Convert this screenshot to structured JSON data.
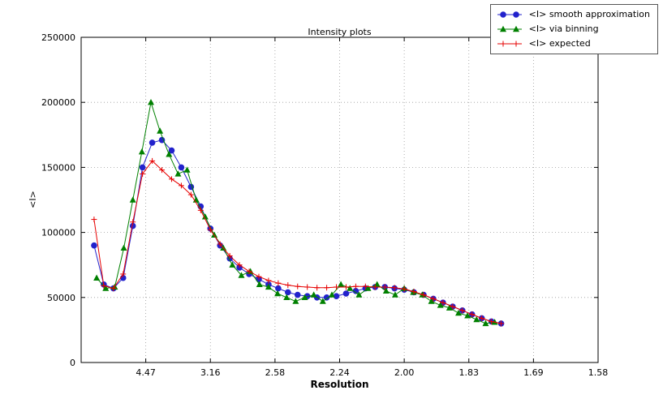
{
  "page": {
    "background": "#ffffff"
  },
  "chart_data": {
    "type": "line",
    "title": "Intensity plots",
    "xlabel": "Resolution",
    "ylabel": "<I>",
    "x_axis_units": "ticks labeled as resolution (A), axis linear in 1/d^2",
    "x_range": [
      0,
      0.4
    ],
    "ylim": [
      0,
      250000
    ],
    "grid": true,
    "legend_position": "upper right",
    "x_ticks": [
      {
        "label": "4.47",
        "pos": 0.05
      },
      {
        "label": "3.16",
        "pos": 0.1
      },
      {
        "label": "2.58",
        "pos": 0.15
      },
      {
        "label": "2.24",
        "pos": 0.2
      },
      {
        "label": "2.00",
        "pos": 0.25
      },
      {
        "label": "1.83",
        "pos": 0.3
      },
      {
        "label": "1.69",
        "pos": 0.35
      },
      {
        "label": "1.58",
        "pos": 0.4
      }
    ],
    "y_ticks": [
      0,
      50000,
      100000,
      150000,
      200000,
      250000
    ],
    "series": [
      {
        "name": "<I> smooth approximation",
        "marker": "circle",
        "color": "#2222cc",
        "x": [
          0.01,
          0.0175,
          0.025,
          0.0325,
          0.04,
          0.0475,
          0.055,
          0.0625,
          0.07,
          0.0775,
          0.085,
          0.0925,
          0.1,
          0.1075,
          0.115,
          0.1225,
          0.13,
          0.1375,
          0.145,
          0.1525,
          0.16,
          0.1675,
          0.175,
          0.1825,
          0.19,
          0.1975,
          0.205,
          0.2125,
          0.22,
          0.2275,
          0.235,
          0.2425,
          0.25,
          0.2575,
          0.265,
          0.2725,
          0.28,
          0.2875,
          0.295,
          0.3025,
          0.31,
          0.3175,
          0.325
        ],
        "y": [
          90000,
          60000,
          57000,
          65000,
          105000,
          150000,
          169000,
          171000,
          163000,
          150000,
          135000,
          120000,
          103000,
          90000,
          80000,
          73000,
          68000,
          64000,
          60000,
          57000,
          54000,
          52000,
          51000,
          50000,
          50000,
          51000,
          53000,
          55000,
          57000,
          58000,
          58000,
          57000,
          56000,
          54000,
          52000,
          49000,
          46000,
          43000,
          40000,
          37000,
          34000,
          31500,
          30000
        ]
      },
      {
        "name": "<I> via binning",
        "marker": "triangle",
        "color": "#008000",
        "x": [
          0.012,
          0.019,
          0.026,
          0.033,
          0.04,
          0.047,
          0.054,
          0.061,
          0.068,
          0.075,
          0.082,
          0.089,
          0.096,
          0.103,
          0.11,
          0.117,
          0.124,
          0.131,
          0.138,
          0.145,
          0.152,
          0.159,
          0.166,
          0.173,
          0.18,
          0.187,
          0.194,
          0.201,
          0.208,
          0.215,
          0.222,
          0.229,
          0.236,
          0.243,
          0.25,
          0.257,
          0.264,
          0.271,
          0.278,
          0.285,
          0.292,
          0.299,
          0.306,
          0.313,
          0.32
        ],
        "y": [
          65000,
          57000,
          58000,
          88000,
          125000,
          162000,
          200000,
          178000,
          160000,
          145000,
          148000,
          125000,
          112000,
          98000,
          88000,
          75000,
          67000,
          70000,
          60000,
          58000,
          53000,
          50000,
          47000,
          50000,
          52000,
          47000,
          52000,
          60000,
          57000,
          52000,
          57000,
          60000,
          55000,
          52000,
          57000,
          54000,
          52000,
          47000,
          44000,
          42000,
          38000,
          36000,
          33000,
          30000,
          31000
        ]
      },
      {
        "name": "<I> expected",
        "marker": "plus",
        "color": "#e60000",
        "x": [
          0.01,
          0.0175,
          0.025,
          0.0325,
          0.04,
          0.0475,
          0.055,
          0.0625,
          0.07,
          0.0775,
          0.085,
          0.0925,
          0.1,
          0.1075,
          0.115,
          0.1225,
          0.13,
          0.1375,
          0.145,
          0.1525,
          0.16,
          0.1675,
          0.175,
          0.1825,
          0.19,
          0.1975,
          0.205,
          0.2125,
          0.22,
          0.2275,
          0.235,
          0.2425,
          0.25,
          0.2575,
          0.265,
          0.2725,
          0.28,
          0.2875,
          0.295,
          0.3025,
          0.31,
          0.3175,
          0.325
        ],
        "y": [
          110000,
          59000,
          57000,
          68000,
          108000,
          145000,
          155000,
          148000,
          141000,
          136000,
          129000,
          117000,
          102000,
          91000,
          82000,
          75000,
          70000,
          66000,
          63000,
          61000,
          59500,
          58500,
          58000,
          57500,
          57500,
          58000,
          58000,
          58500,
          58500,
          58000,
          58000,
          57500,
          56500,
          54500,
          52000,
          49000,
          46000,
          43000,
          40000,
          37000,
          34000,
          31500,
          30000
        ]
      }
    ]
  }
}
